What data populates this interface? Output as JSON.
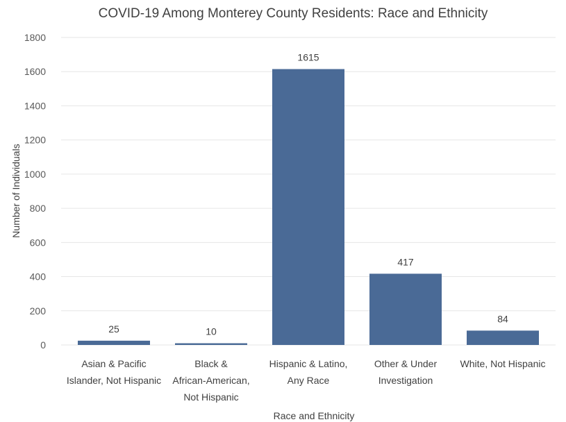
{
  "chart_data": {
    "type": "bar",
    "title": "COVID-19 Among Monterey County Residents: Race and Ethnicity",
    "xlabel": "Race and Ethnicity",
    "ylabel": "Number of Individuals",
    "ylim": [
      0,
      1800
    ],
    "yticks": [
      0,
      200,
      400,
      600,
      800,
      1000,
      1200,
      1400,
      1600,
      1800
    ],
    "categories": [
      [
        "Asian & Pacific",
        "Islander, Not Hispanic"
      ],
      [
        "Black &",
        "African-American,",
        "Not Hispanic"
      ],
      [
        "Hispanic & Latino,",
        "Any Race"
      ],
      [
        "Other & Under",
        "Investigation"
      ],
      [
        "White, Not Hispanic"
      ]
    ],
    "values": [
      25,
      10,
      1615,
      417,
      84
    ],
    "bar_color": "#4a6a96",
    "grid": true,
    "data_labels": true
  }
}
